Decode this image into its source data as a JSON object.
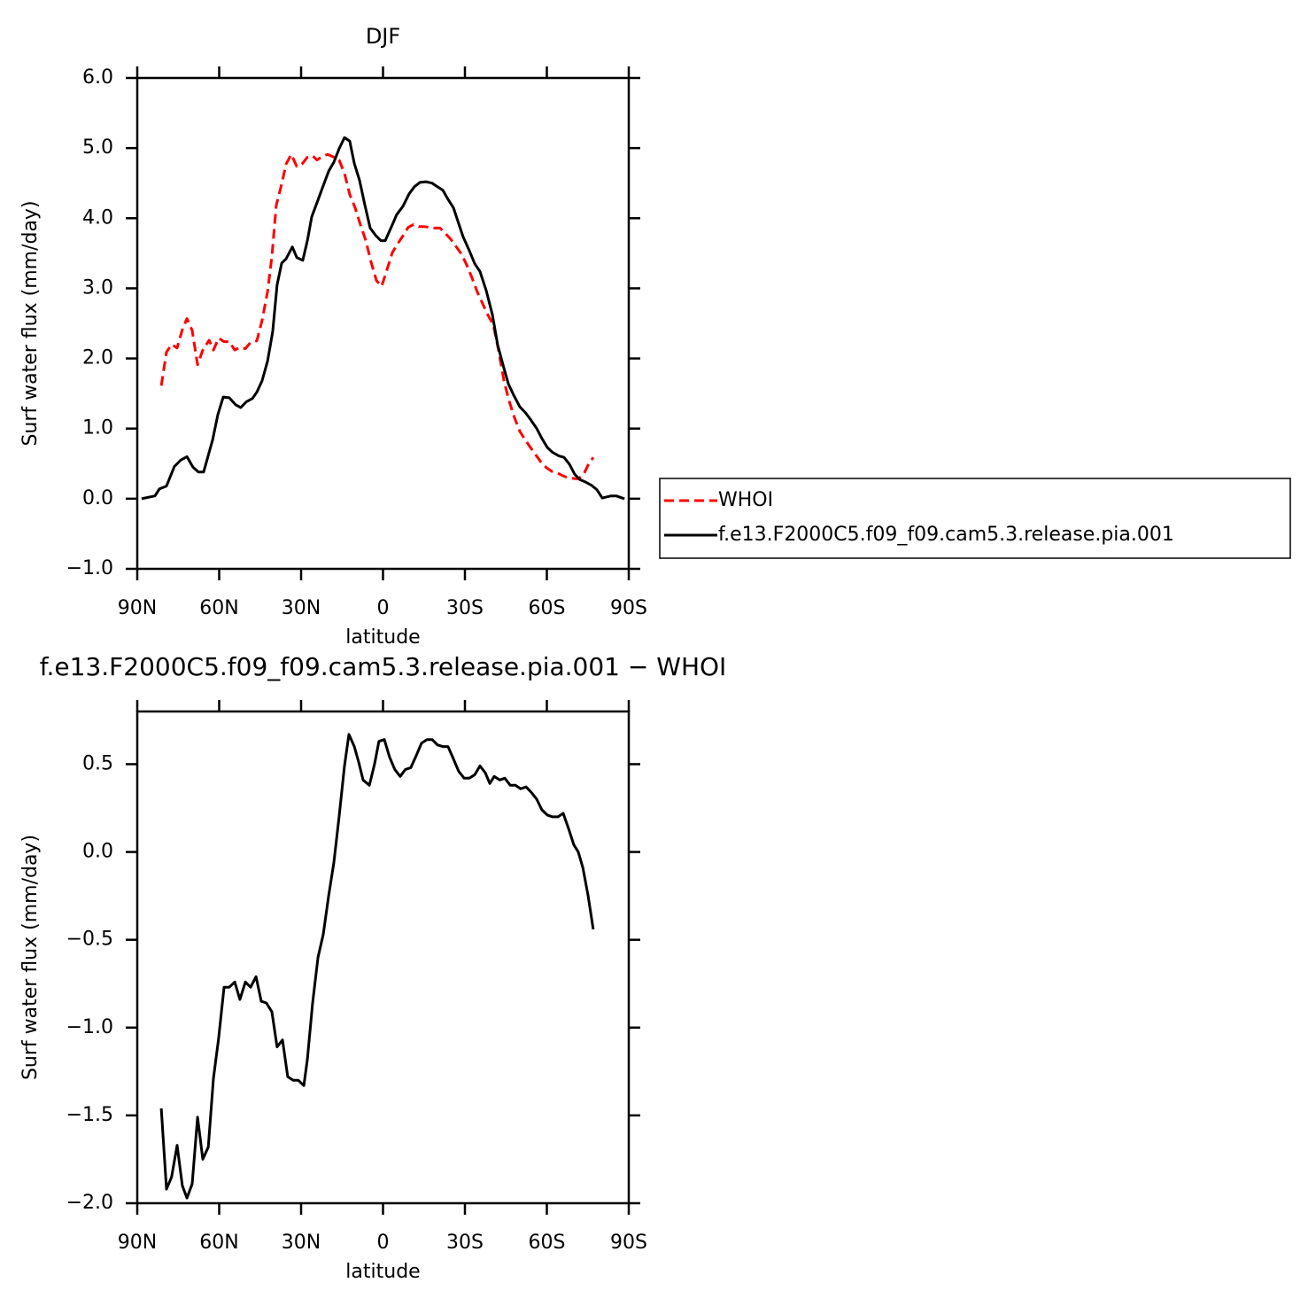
{
  "chart_data": [
    {
      "type": "line",
      "title": "DJF",
      "xlabel": "latitude",
      "ylabel": "Surf water flux (mm/day)",
      "xlim": [
        90,
        -90
      ],
      "xticks": [
        {
          "value": 90,
          "label": "90N"
        },
        {
          "value": 60,
          "label": "60N"
        },
        {
          "value": 30,
          "label": "30N"
        },
        0,
        {
          "value": -30,
          "label": "30S"
        },
        {
          "value": -60,
          "label": "60S"
        },
        {
          "value": -90,
          "label": "90S"
        }
      ],
      "ylim": [
        -1.0,
        6.0
      ],
      "yticks": [
        {
          "value": -1.0,
          "label": "−1.0"
        },
        {
          "value": 0,
          "label": "0.0"
        },
        {
          "value": 1.0,
          "label": "1.0"
        },
        {
          "value": 2.0,
          "label": "2.0"
        },
        {
          "value": 3.0,
          "label": "3.0"
        },
        {
          "value": 4.0,
          "label": "4.0"
        },
        {
          "value": 5.0,
          "label": "5.0"
        },
        {
          "value": 6.0,
          "label": "6.0"
        }
      ],
      "legend": "right",
      "series": [
        {
          "name": "WHOI",
          "color": "#ff0000",
          "dashed": true,
          "x": [
            81.2,
            79.3,
            77.4,
            75.4,
            73.5,
            71.8,
            69.9,
            67.9,
            66.0,
            63.7,
            62.1,
            60.2,
            58.2,
            56.3,
            54.3,
            52.4,
            50.4,
            48.5,
            46.2,
            44.3,
            42.3,
            40.7,
            39.1,
            37.1,
            35.5,
            33.6,
            31.6,
            29.7,
            27.7,
            25.8,
            24.2,
            22.2,
            20.3,
            18.0,
            16.1,
            14.1,
            12.2,
            10.2,
            8.3,
            6.3,
            4.4,
            2.4,
            0.5,
            -1.5,
            -3.4,
            -5.3,
            -7.3,
            -9.2,
            -11.2,
            -13.1,
            -15.1,
            -17.0,
            -19.0,
            -20.9,
            -22.9,
            -24.8,
            -26.7,
            -28.7,
            -30.6,
            -32.6,
            -34.5,
            -36.5,
            -38.4,
            -40.4,
            -42.3,
            -44.3,
            -46.2,
            -48.2,
            -50.1,
            -52.1,
            -54.0,
            -56.0,
            -57.9,
            -59.9,
            -61.8,
            -63.7,
            -65.7,
            -67.6,
            -69.6,
            -71.5,
            -73.5,
            -75.1,
            -77.0
          ],
          "values": [
            1.61,
            2.09,
            2.2,
            2.15,
            2.41,
            2.57,
            2.4,
            1.91,
            2.12,
            2.26,
            2.12,
            2.29,
            2.24,
            2.24,
            2.12,
            2.16,
            2.14,
            2.23,
            2.25,
            2.54,
            2.95,
            3.45,
            4.18,
            4.49,
            4.77,
            4.91,
            4.74,
            4.77,
            4.87,
            4.89,
            4.83,
            4.88,
            4.91,
            4.87,
            4.83,
            4.64,
            4.34,
            4.15,
            3.91,
            3.68,
            3.38,
            3.11,
            3.03,
            3.27,
            3.51,
            3.63,
            3.75,
            3.87,
            3.91,
            3.88,
            3.88,
            3.87,
            3.86,
            3.86,
            3.78,
            3.7,
            3.6,
            3.49,
            3.34,
            3.15,
            2.95,
            2.78,
            2.62,
            2.48,
            2.12,
            1.68,
            1.39,
            1.15,
            0.96,
            0.84,
            0.73,
            0.62,
            0.52,
            0.44,
            0.39,
            0.37,
            0.33,
            0.3,
            0.29,
            0.28,
            0.35,
            0.48,
            0.59
          ]
        },
        {
          "name": "f.e13.F2000C5.f09_f09.cam5.3.release.pia.001",
          "color": "#000000",
          "dashed": false,
          "x": [
            88.4,
            83.5,
            81.9,
            79.3,
            76.4,
            74.1,
            71.8,
            69.6,
            67.6,
            65.7,
            62.4,
            60.5,
            58.5,
            56.3,
            54.0,
            52.1,
            50.1,
            47.8,
            46.2,
            44.3,
            42.3,
            40.4,
            38.8,
            37.1,
            35.5,
            33.2,
            31.6,
            29.4,
            27.7,
            26.1,
            23.8,
            22.2,
            19.9,
            18.0,
            16.1,
            14.1,
            12.2,
            10.5,
            8.6,
            6.7,
            4.7,
            2.8,
            0.8,
            -0.8,
            -3.1,
            -5.0,
            -7.3,
            -9.6,
            -11.5,
            -13.5,
            -15.7,
            -18.0,
            -19.9,
            -21.9,
            -23.8,
            -25.8,
            -27.4,
            -29.3,
            -31.6,
            -33.6,
            -35.5,
            -37.8,
            -40.1,
            -42.0,
            -44.0,
            -45.9,
            -47.8,
            -50.1,
            -52.1,
            -54.0,
            -56.3,
            -58.2,
            -60.2,
            -62.1,
            -64.4,
            -66.3,
            -68.3,
            -70.2,
            -72.2,
            -74.1,
            -76.4,
            -78.3,
            -80.3,
            -83.5,
            -85.4,
            -88.4
          ],
          "values": [
            0.0,
            0.04,
            0.14,
            0.18,
            0.46,
            0.55,
            0.6,
            0.45,
            0.38,
            0.38,
            0.84,
            1.2,
            1.45,
            1.44,
            1.34,
            1.3,
            1.38,
            1.43,
            1.52,
            1.68,
            1.96,
            2.38,
            3.05,
            3.36,
            3.42,
            3.59,
            3.44,
            3.4,
            3.68,
            4.02,
            4.26,
            4.43,
            4.67,
            4.8,
            4.99,
            5.15,
            5.1,
            4.78,
            4.54,
            4.2,
            3.86,
            3.76,
            3.68,
            3.68,
            3.88,
            4.05,
            4.17,
            4.35,
            4.45,
            4.51,
            4.52,
            4.5,
            4.45,
            4.4,
            4.27,
            4.15,
            3.96,
            3.74,
            3.54,
            3.35,
            3.24,
            2.97,
            2.62,
            2.19,
            1.9,
            1.64,
            1.48,
            1.31,
            1.23,
            1.13,
            1.0,
            0.86,
            0.73,
            0.66,
            0.61,
            0.59,
            0.49,
            0.35,
            0.27,
            0.24,
            0.19,
            0.13,
            0.01,
            0.04,
            0.04,
            0.0
          ]
        }
      ]
    },
    {
      "type": "line",
      "title": "f.e13.F2000C5.f09_f09.cam5.3.release.pia.001 − WHOI",
      "xlabel": "latitude",
      "ylabel": "Surf water flux (mm/day)",
      "xlim": [
        90,
        -90
      ],
      "xticks": [
        {
          "value": 90,
          "label": "90N"
        },
        {
          "value": 60,
          "label": "60N"
        },
        {
          "value": 30,
          "label": "30N"
        },
        0,
        {
          "value": -30,
          "label": "30S"
        },
        {
          "value": -60,
          "label": "60S"
        },
        {
          "value": -90,
          "label": "90S"
        }
      ],
      "ylim": [
        -2.0,
        0.8
      ],
      "yticks": [
        {
          "value": -2.0,
          "label": "−2.0"
        },
        {
          "value": -1.5,
          "label": "−1.5"
        },
        {
          "value": -1.0,
          "label": "−1.0"
        },
        {
          "value": -0.5,
          "label": "−0.5"
        },
        {
          "value": 0,
          "label": "0.0"
        },
        0.5
      ],
      "color": "#000000",
      "x": [
        81.2,
        79.3,
        77.4,
        75.4,
        73.5,
        71.8,
        69.9,
        67.9,
        66.0,
        64.0,
        62.1,
        60.2,
        58.2,
        56.3,
        54.3,
        52.4,
        50.4,
        48.5,
        46.5,
        44.6,
        42.7,
        40.7,
        38.8,
        36.8,
        34.9,
        32.9,
        31.0,
        29.0,
        27.7,
        25.8,
        23.8,
        21.9,
        19.9,
        18.0,
        16.1,
        14.1,
        12.5,
        10.5,
        8.9,
        7.3,
        5.0,
        3.1,
        1.5,
        -0.5,
        -2.4,
        -4.3,
        -6.3,
        -8.2,
        -10.2,
        -12.2,
        -14.1,
        -16.1,
        -18.0,
        -19.9,
        -21.9,
        -23.8,
        -25.8,
        -27.7,
        -29.7,
        -31.6,
        -33.6,
        -35.5,
        -37.5,
        -39.1,
        -40.7,
        -42.7,
        -44.6,
        -46.6,
        -48.5,
        -50.4,
        -52.4,
        -54.3,
        -56.3,
        -58.2,
        -60.2,
        -62.1,
        -64.1,
        -66.0,
        -68.0,
        -69.9,
        -71.5,
        -73.2,
        -75.1,
        -77.0
      ],
      "values": [
        -1.46,
        -1.92,
        -1.85,
        -1.67,
        -1.9,
        -1.97,
        -1.89,
        -1.51,
        -1.75,
        -1.68,
        -1.29,
        -1.06,
        -0.77,
        -0.77,
        -0.74,
        -0.84,
        -0.74,
        -0.77,
        -0.71,
        -0.85,
        -0.86,
        -0.91,
        -1.11,
        -1.07,
        -1.28,
        -1.3,
        -1.3,
        -1.33,
        -1.18,
        -0.86,
        -0.6,
        -0.47,
        -0.25,
        -0.06,
        0.2,
        0.49,
        0.67,
        0.6,
        0.51,
        0.41,
        0.38,
        0.5,
        0.63,
        0.64,
        0.54,
        0.47,
        0.43,
        0.47,
        0.48,
        0.55,
        0.62,
        0.64,
        0.64,
        0.61,
        0.6,
        0.6,
        0.53,
        0.46,
        0.42,
        0.42,
        0.44,
        0.49,
        0.45,
        0.39,
        0.43,
        0.41,
        0.42,
        0.38,
        0.38,
        0.36,
        0.37,
        0.34,
        0.3,
        0.24,
        0.21,
        0.2,
        0.2,
        0.22,
        0.13,
        0.04,
        0.0,
        -0.09,
        -0.25,
        -0.44
      ]
    }
  ]
}
